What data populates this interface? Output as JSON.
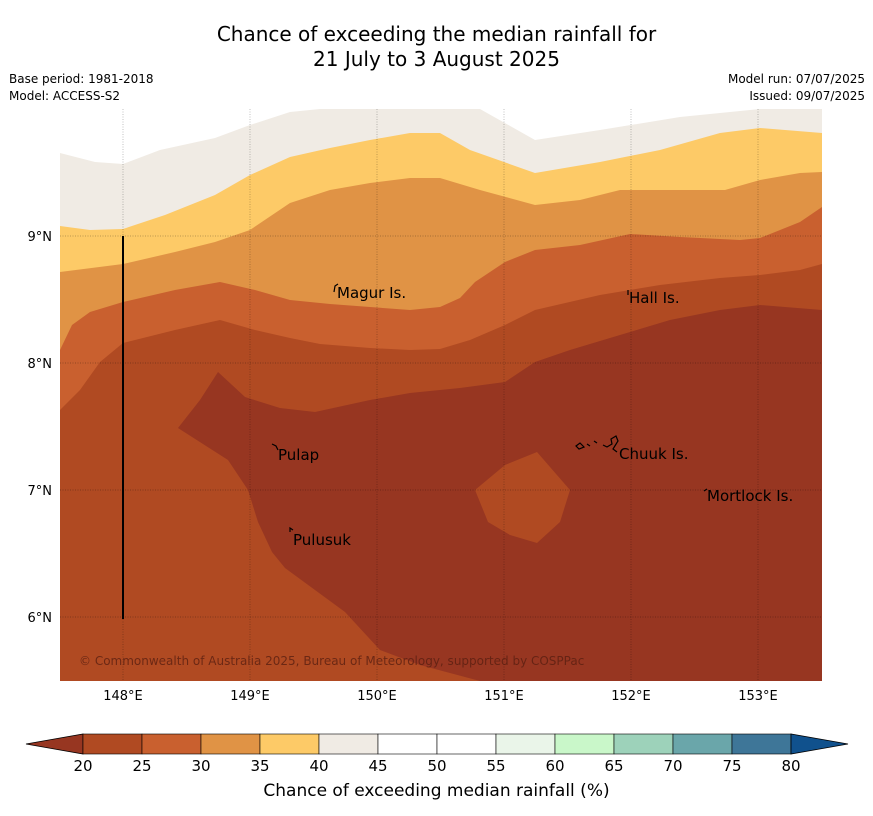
{
  "title": {
    "line1": "Chance of exceeding the median rainfall for",
    "line2": "21 July to 3 August 2025"
  },
  "meta": {
    "base_period": "Base period: 1981-2018",
    "model": "Model: ACCESS-S2",
    "model_run": "Model run: 07/07/2025",
    "issued": "Issued: 09/07/2025"
  },
  "map": {
    "lon_labels": [
      "148°E",
      "149°E",
      "150°E",
      "151°E",
      "152°E",
      "153°E"
    ],
    "lat_labels": [
      "9°N",
      "8°N",
      "7°N",
      "6°N"
    ],
    "copyright": "© Commonwealth of Australia 2025, Bureau of Meteorology, supported by COSPPac",
    "places": [
      {
        "name": "Magur Is."
      },
      {
        "name": "Hall Is."
      },
      {
        "name": "Pulap"
      },
      {
        "name": "Chuuk Is."
      },
      {
        "name": "Mortlock Is."
      },
      {
        "name": "Pulusuk"
      }
    ]
  },
  "colorbar": {
    "ticks": [
      "20",
      "25",
      "30",
      "35",
      "40",
      "45",
      "50",
      "55",
      "60",
      "65",
      "70",
      "75",
      "80"
    ],
    "colors": [
      "#b04a22",
      "#c9602f",
      "#e09345",
      "#fdca67",
      "#f0ebe4",
      "#ffffff",
      "#ffffff",
      "#eaf5e9",
      "#c9f7c9",
      "#9dd2ba",
      "#6aa6aa",
      "#3e7698"
    ],
    "under_color": "#973621",
    "over_color": "#10518d",
    "label": "Chance of exceeding median rainfall (%)"
  }
}
